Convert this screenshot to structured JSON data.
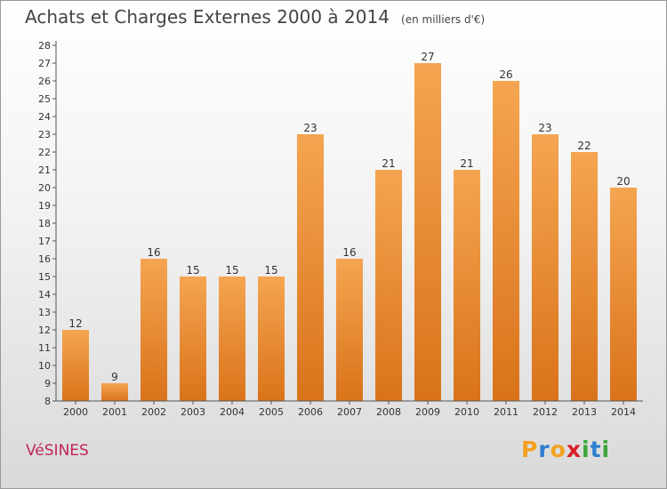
{
  "title": "Achats et Charges Externes 2000 à 2014",
  "subtitle": "(en milliers d'€)",
  "commune": "VéSINES",
  "logo": {
    "letters": [
      "P",
      "r",
      "o",
      "x",
      "i",
      "t",
      "i"
    ],
    "colors": [
      "#f4a020",
      "#2f7fd0",
      "#f4a020",
      "#d81f2a",
      "#3aa53a",
      "#2f7fd0",
      "#3aa53a"
    ]
  },
  "colors": {
    "bar_top": "#f5a551",
    "bar_bottom": "#d9731a",
    "axis": "#555555",
    "grid": "#cccccc"
  },
  "chart_data": {
    "type": "bar",
    "title": "Achats et Charges Externes 2000 à 2014",
    "subtitle": "(en milliers d'€)",
    "categories": [
      "2000",
      "2001",
      "2002",
      "2003",
      "2004",
      "2005",
      "2006",
      "2007",
      "2008",
      "2009",
      "2010",
      "2011",
      "2012",
      "2013",
      "2014"
    ],
    "values": [
      12,
      9,
      16,
      15,
      15,
      15,
      23,
      16,
      21,
      27,
      21,
      26,
      23,
      22,
      20
    ],
    "xlabel": "",
    "ylabel": "",
    "ylim": [
      8,
      28
    ],
    "yticks": [
      8,
      9,
      10,
      11,
      12,
      13,
      14,
      15,
      16,
      17,
      18,
      19,
      20,
      21,
      22,
      23,
      24,
      25,
      26,
      27,
      28
    ],
    "grid": false,
    "legend": "none"
  }
}
